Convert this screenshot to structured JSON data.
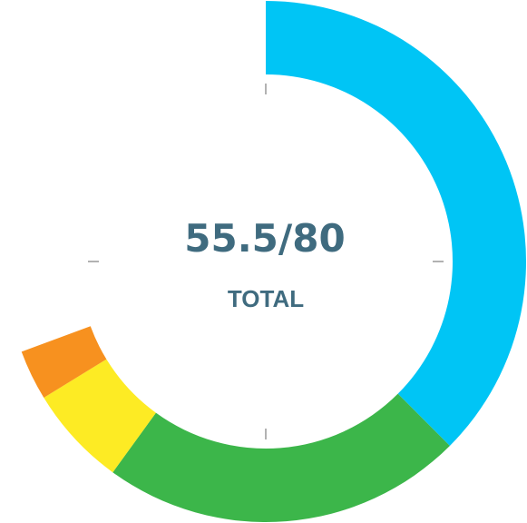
{
  "chart_data": {
    "type": "donut",
    "title": "",
    "total_value": "55.5",
    "max_value": "80",
    "separator": "/",
    "label": "TOTAL",
    "max": 80,
    "series": [
      {
        "name": "segment-1",
        "value": 30,
        "color": "#00c5f5"
      },
      {
        "name": "segment-2",
        "value": 18,
        "color": "#3cb64a"
      },
      {
        "name": "segment-3",
        "value": 5,
        "color": "#fdeb24"
      },
      {
        "name": "segment-4",
        "value": 2.5,
        "color": "#f7911f"
      }
    ],
    "tick_color": "#999999"
  }
}
